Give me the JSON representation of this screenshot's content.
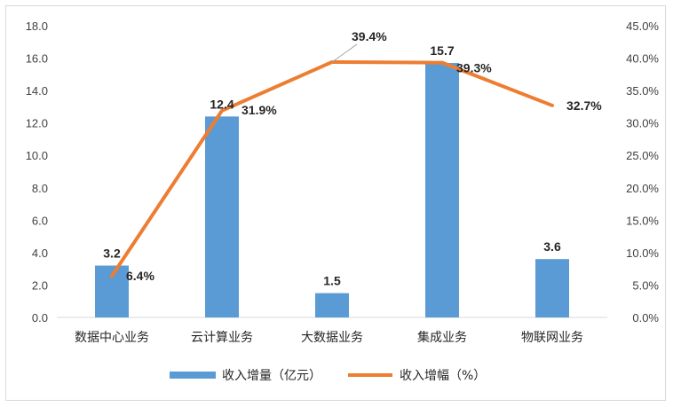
{
  "chart_data": {
    "type": "bar",
    "categories": [
      "数据中心业务",
      "云计算业务",
      "大数据业务",
      "集成业务",
      "物联网业务"
    ],
    "series": [
      {
        "name": "收入增量（亿元）",
        "type": "bar",
        "axis": "left",
        "color": "#5b9bd5",
        "values": [
          3.2,
          12.4,
          1.5,
          15.7,
          3.6
        ],
        "labels": [
          "3.2",
          "12.4",
          "1.5",
          "15.7",
          "3.6"
        ]
      },
      {
        "name": "收入增幅（%）",
        "type": "line",
        "axis": "right",
        "color": "#ed7d31",
        "values": [
          6.4,
          31.9,
          39.4,
          39.3,
          32.7
        ],
        "labels": [
          "6.4%",
          "31.9%",
          "39.4%",
          "39.3%",
          "32.7%"
        ]
      }
    ],
    "y_left": {
      "ylim": [
        0,
        18
      ],
      "ticks": [
        "0.0",
        "2.0",
        "4.0",
        "6.0",
        "8.0",
        "10.0",
        "12.0",
        "14.0",
        "16.0",
        "18.0"
      ]
    },
    "y_right": {
      "ylim": [
        0,
        45
      ],
      "ticks": [
        "0.0%",
        "5.0%",
        "10.0%",
        "15.0%",
        "20.0%",
        "25.0%",
        "30.0%",
        "35.0%",
        "40.0%",
        "45.0%"
      ]
    },
    "grid": false,
    "legend": "bottom"
  }
}
